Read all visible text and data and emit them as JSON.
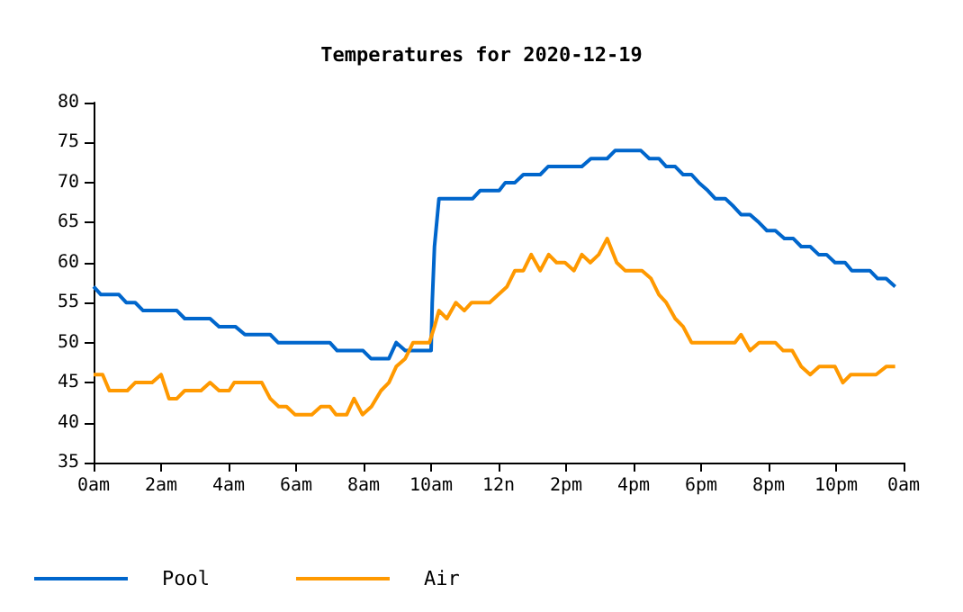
{
  "chart_data": {
    "type": "line",
    "title": "Temperatures for 2020-12-19",
    "xlim": [
      "2020-12-19T00:00",
      "2020-12-20T00:00"
    ],
    "xticks": [
      {
        "value": "2020-12-19T00:00",
        "label": "0am"
      },
      {
        "value": "2020-12-19T02:00",
        "label": "2am"
      },
      {
        "value": "2020-12-19T04:00",
        "label": "4am"
      },
      {
        "value": "2020-12-19T06:00",
        "label": "6am"
      },
      {
        "value": "2020-12-19T08:00",
        "label": "8am"
      },
      {
        "value": "2020-12-19T10:00",
        "label": "10am"
      },
      {
        "value": "2020-12-19T12:00",
        "label": "12n"
      },
      {
        "value": "2020-12-19T14:00",
        "label": "2pm"
      },
      {
        "value": "2020-12-19T16:00",
        "label": "4pm"
      },
      {
        "value": "2020-12-19T18:00",
        "label": "6pm"
      },
      {
        "value": "2020-12-19T20:00",
        "label": "8pm"
      },
      {
        "value": "2020-12-19T22:00",
        "label": "10pm"
      },
      {
        "value": "2020-12-20T00:00",
        "label": "0am"
      }
    ],
    "ylim": [
      35,
      80
    ],
    "yticks": [
      35,
      40,
      45,
      50,
      55,
      60,
      65,
      70,
      75,
      80
    ],
    "grid": false,
    "legend": "bottom left",
    "marker": "none",
    "line_style": "solid",
    "series": [
      {
        "name": "Pool",
        "color": "#0066cc",
        "x": [
          "2020-12-19T00:00",
          "2020-12-19T00:13",
          "2020-12-19T00:45",
          "2020-12-19T00:58",
          "2020-12-19T01:14",
          "2020-12-19T01:28",
          "2020-12-19T02:28",
          "2020-12-19T02:42",
          "2020-12-19T03:27",
          "2020-12-19T03:43",
          "2020-12-19T04:12",
          "2020-12-19T04:29",
          "2020-12-19T05:14",
          "2020-12-19T05:28",
          "2020-12-19T07:00",
          "2020-12-19T07:13",
          "2020-12-19T07:59",
          "2020-12-19T08:13",
          "2020-12-19T08:45",
          "2020-12-19T08:58",
          "2020-12-19T09:14",
          "2020-12-19T10:00",
          "2020-12-19T10:02",
          "2020-12-19T10:06",
          "2020-12-19T10:14",
          "2020-12-19T11:14",
          "2020-12-19T11:27",
          "2020-12-19T12:01",
          "2020-12-19T12:12",
          "2020-12-19T12:29",
          "2020-12-19T12:44",
          "2020-12-19T13:14",
          "2020-12-19T13:28",
          "2020-12-19T14:28",
          "2020-12-19T14:44",
          "2020-12-19T15:13",
          "2020-12-19T15:27",
          "2020-12-19T16:13",
          "2020-12-19T16:28",
          "2020-12-19T16:45",
          "2020-12-19T16:58",
          "2020-12-19T17:14",
          "2020-12-19T17:28",
          "2020-12-19T17:43",
          "2020-12-19T17:56",
          "2020-12-19T18:12",
          "2020-12-19T18:25",
          "2020-12-19T18:43",
          "2020-12-19T18:58",
          "2020-12-19T19:11",
          "2020-12-19T19:27",
          "2020-12-19T19:43",
          "2020-12-19T19:57",
          "2020-12-19T20:12",
          "2020-12-19T20:28",
          "2020-12-19T20:44",
          "2020-12-19T20:58",
          "2020-12-19T21:14",
          "2020-12-19T21:29",
          "2020-12-19T21:43",
          "2020-12-19T21:58",
          "2020-12-19T22:16",
          "2020-12-19T22:28",
          "2020-12-19T23:00",
          "2020-12-19T23:14",
          "2020-12-19T23:29",
          "2020-12-19T23:45"
        ],
        "values": [
          57,
          56,
          56,
          55,
          55,
          54,
          54,
          53,
          53,
          52,
          52,
          51,
          51,
          50,
          50,
          49,
          49,
          48,
          48,
          50,
          49,
          49,
          55,
          62,
          68,
          68,
          69,
          69,
          70,
          70,
          71,
          71,
          72,
          72,
          73,
          73,
          74,
          74,
          73,
          73,
          72,
          72,
          71,
          71,
          70,
          69,
          68,
          68,
          67,
          66,
          66,
          65,
          64,
          64,
          63,
          63,
          62,
          62,
          61,
          61,
          60,
          60,
          59,
          59,
          58,
          58,
          57
        ]
      },
      {
        "name": "Air",
        "color": "#ff9900",
        "x": [
          "2020-12-19T00:00",
          "2020-12-19T00:16",
          "2020-12-19T00:28",
          "2020-12-19T01:00",
          "2020-12-19T01:14",
          "2020-12-19T01:44",
          "2020-12-19T02:00",
          "2020-12-19T02:14",
          "2020-12-19T02:28",
          "2020-12-19T02:42",
          "2020-12-19T03:11",
          "2020-12-19T03:27",
          "2020-12-19T03:43",
          "2020-12-19T04:01",
          "2020-12-19T04:10",
          "2020-12-19T04:59",
          "2020-12-19T05:14",
          "2020-12-19T05:29",
          "2020-12-19T05:43",
          "2020-12-19T05:58",
          "2020-12-19T06:28",
          "2020-12-19T06:44",
          "2020-12-19T07:00",
          "2020-12-19T07:11",
          "2020-12-19T07:30",
          "2020-12-19T07:43",
          "2020-12-19T07:58",
          "2020-12-19T08:14",
          "2020-12-19T08:31",
          "2020-12-19T08:45",
          "2020-12-19T08:58",
          "2020-12-19T09:14",
          "2020-12-19T09:28",
          "2020-12-19T09:57",
          "2020-12-19T10:06",
          "2020-12-19T10:14",
          "2020-12-19T10:28",
          "2020-12-19T10:44",
          "2020-12-19T10:59",
          "2020-12-19T11:12",
          "2020-12-19T11:44",
          "2020-12-19T12:15",
          "2020-12-19T12:29",
          "2020-12-19T12:44",
          "2020-12-19T12:58",
          "2020-12-19T13:14",
          "2020-12-19T13:29",
          "2020-12-19T13:43",
          "2020-12-19T13:58",
          "2020-12-19T14:14",
          "2020-12-19T14:28",
          "2020-12-19T14:43",
          "2020-12-19T14:58",
          "2020-12-19T15:13",
          "2020-12-19T15:30",
          "2020-12-19T15:45",
          "2020-12-19T16:15",
          "2020-12-19T16:31",
          "2020-12-19T16:45",
          "2020-12-19T16:58",
          "2020-12-19T17:14",
          "2020-12-19T17:28",
          "2020-12-19T17:43",
          "2020-12-19T19:00",
          "2020-12-19T19:11",
          "2020-12-19T19:27",
          "2020-12-19T19:43",
          "2020-12-19T20:12",
          "2020-12-19T20:26",
          "2020-12-19T20:42",
          "2020-12-19T20:58",
          "2020-12-19T21:14",
          "2020-12-19T21:30",
          "2020-12-19T21:58",
          "2020-12-19T22:12",
          "2020-12-19T22:26",
          "2020-12-19T23:11",
          "2020-12-19T23:29",
          "2020-12-19T23:45"
        ],
        "values": [
          46,
          46,
          44,
          44,
          45,
          45,
          46,
          43,
          43,
          44,
          44,
          45,
          44,
          44,
          45,
          45,
          43,
          42,
          42,
          41,
          41,
          42,
          42,
          41,
          41,
          43,
          41,
          42,
          44,
          45,
          47,
          48,
          50,
          50,
          52,
          54,
          53,
          55,
          54,
          55,
          55,
          57,
          59,
          59,
          61,
          59,
          61,
          60,
          60,
          59,
          61,
          60,
          61,
          63,
          60,
          59,
          59,
          58,
          56,
          55,
          53,
          52,
          50,
          50,
          51,
          49,
          50,
          50,
          49,
          49,
          47,
          46,
          47,
          47,
          45,
          46,
          46,
          47,
          47
        ]
      }
    ]
  }
}
